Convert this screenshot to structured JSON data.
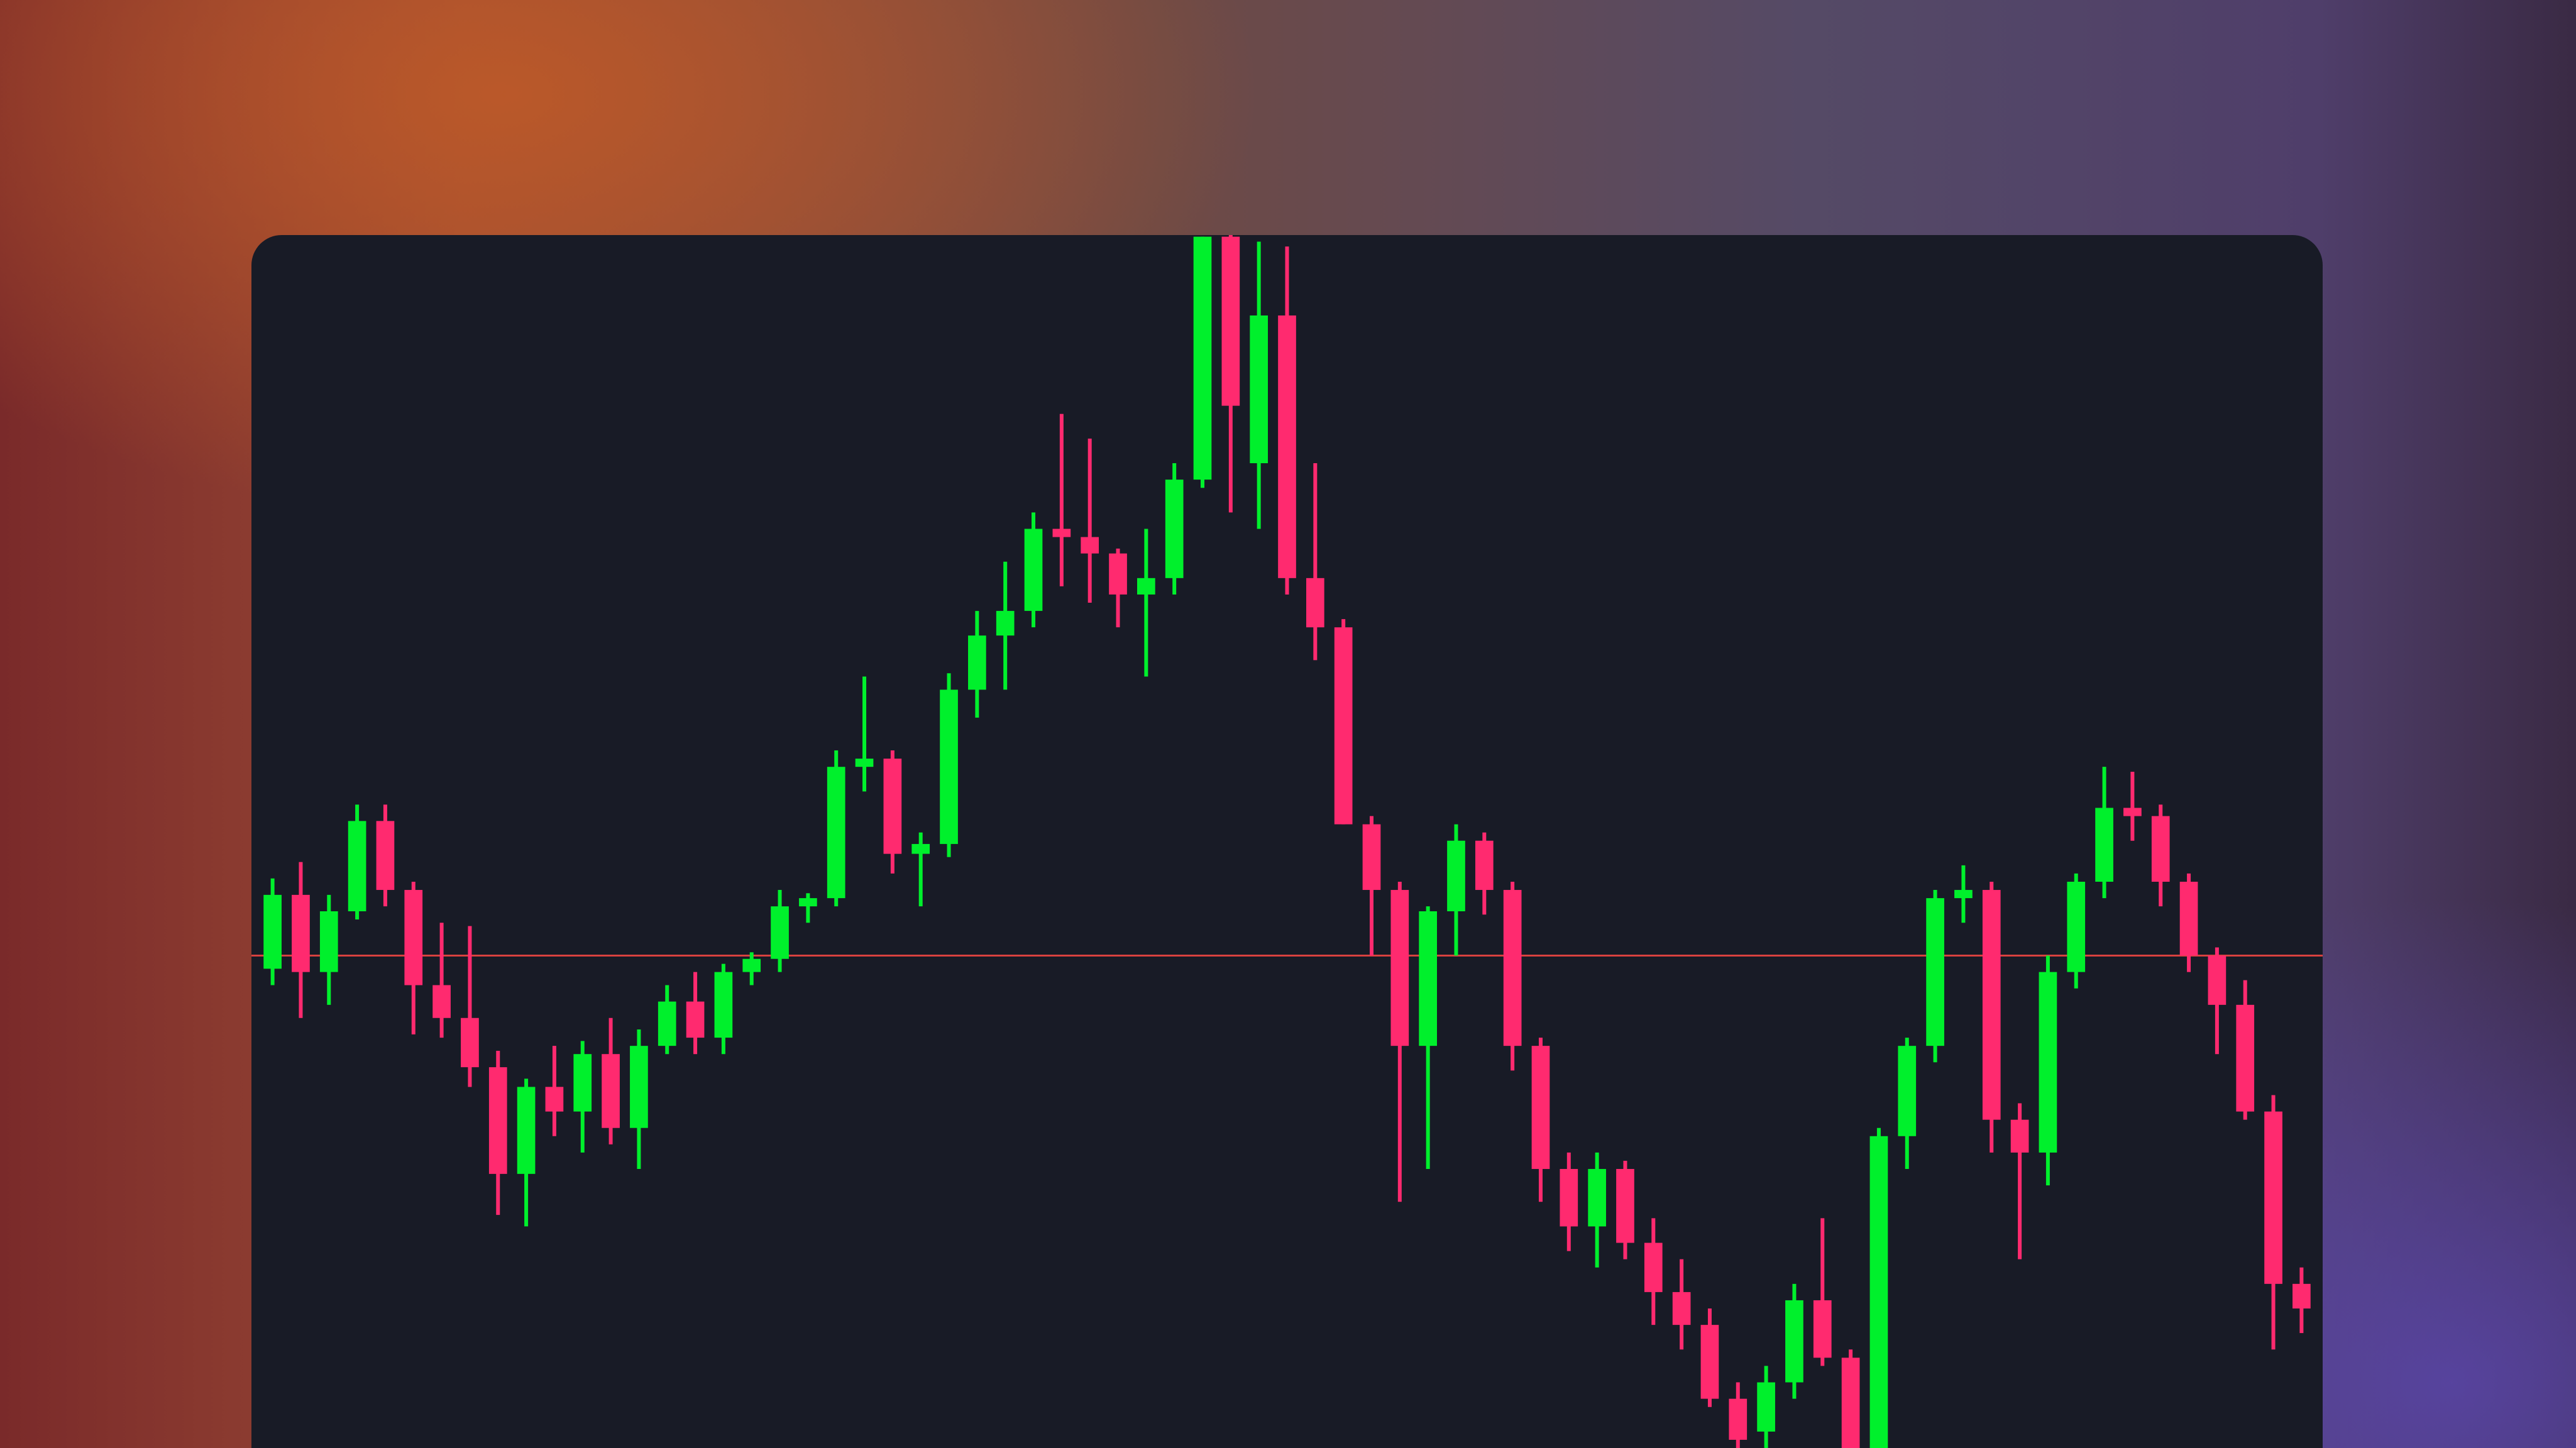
{
  "chart_data": {
    "type": "candlestick",
    "open": [
      292,
      337,
      290,
      327,
      382,
      340,
      282,
      262,
      232,
      167,
      220,
      205,
      240,
      195,
      245,
      272,
      250,
      290,
      298,
      330,
      335,
      415,
      420,
      362,
      368,
      462,
      495,
      510,
      560,
      555,
      545,
      520,
      530,
      590,
      738,
      600,
      690,
      530,
      500,
      380,
      340,
      245,
      327,
      370,
      340,
      245,
      170,
      135,
      170,
      125,
      95,
      75,
      30,
      10,
      40,
      90,
      55,
      0,
      190,
      245,
      335,
      340,
      200,
      180,
      290,
      345,
      390,
      385,
      345,
      300,
      270,
      205,
      100
    ],
    "high": [
      347,
      357,
      337,
      392,
      392,
      345,
      320,
      318,
      242,
      225,
      245,
      248,
      262,
      255,
      282,
      290,
      295,
      302,
      340,
      338,
      425,
      470,
      425,
      375,
      472,
      510,
      540,
      570,
      630,
      615,
      548,
      560,
      600,
      738,
      739,
      735,
      732,
      600,
      505,
      385,
      345,
      330,
      380,
      375,
      345,
      250,
      180,
      180,
      175,
      140,
      115,
      85,
      40,
      50,
      100,
      140,
      60,
      195,
      250,
      340,
      355,
      345,
      210,
      300,
      350,
      415,
      412,
      392,
      350,
      305,
      285,
      215,
      110
    ],
    "low": [
      282,
      262,
      270,
      322,
      330,
      252,
      250,
      220,
      142,
      135,
      190,
      180,
      185,
      170,
      240,
      240,
      240,
      282,
      290,
      320,
      330,
      400,
      350,
      330,
      360,
      445,
      462,
      500,
      525,
      515,
      500,
      470,
      520,
      585,
      570,
      560,
      520,
      480,
      380,
      300,
      150,
      170,
      300,
      325,
      230,
      150,
      120,
      110,
      115,
      75,
      60,
      25,
      0,
      0,
      30,
      50,
      0,
      0,
      170,
      235,
      320,
      180,
      115,
      160,
      280,
      335,
      370,
      330,
      290,
      240,
      200,
      60,
      70
    ],
    "close": [
      337,
      290,
      327,
      382,
      340,
      282,
      262,
      232,
      167,
      220,
      205,
      240,
      195,
      245,
      272,
      250,
      290,
      298,
      330,
      335,
      415,
      420,
      362,
      368,
      462,
      495,
      510,
      560,
      555,
      545,
      520,
      530,
      590,
      738,
      635,
      690,
      530,
      500,
      380,
      340,
      245,
      327,
      370,
      340,
      245,
      170,
      135,
      170,
      125,
      95,
      75,
      30,
      5,
      40,
      90,
      55,
      0,
      190,
      245,
      335,
      340,
      200,
      180,
      290,
      345,
      390,
      385,
      345,
      300,
      270,
      205,
      100,
      85
    ],
    "up_color": "#00f02c",
    "down_color": "#ff2a6f",
    "hline": 300,
    "hline_color": "#d8413f",
    "ylim": [
      0,
      739
    ]
  }
}
